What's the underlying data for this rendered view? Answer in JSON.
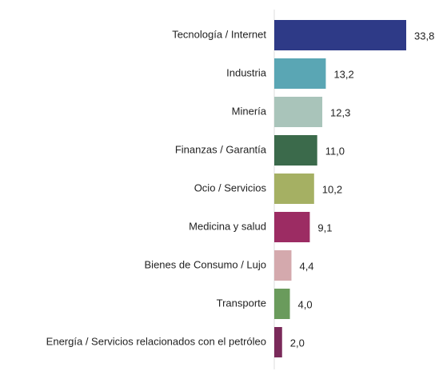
{
  "chart_data": {
    "type": "hbar",
    "categories": [
      "Tecnología / Internet",
      "Industria",
      "Minería",
      "Finanzas / Garantía",
      "Ocio / Servicios",
      "Medicina y salud",
      "Bienes de Consumo / Lujo",
      "Transporte",
      "Energía / Servicios relacionados con el petróleo"
    ],
    "values": [
      33.8,
      13.2,
      12.3,
      11.0,
      10.2,
      9.1,
      4.4,
      4.0,
      2.0
    ],
    "value_labels": [
      "33,8",
      "13,2",
      "12,3",
      "11,0",
      "10,2",
      "9,1",
      "4,4",
      "4,0",
      "2,0"
    ],
    "colors": [
      "#2e3a87",
      "#5aa6b4",
      "#a9c4ba",
      "#3b6a4b",
      "#a5b063",
      "#9c2c63",
      "#d4a9ad",
      "#6a9b5c",
      "#7a2a5a"
    ]
  }
}
